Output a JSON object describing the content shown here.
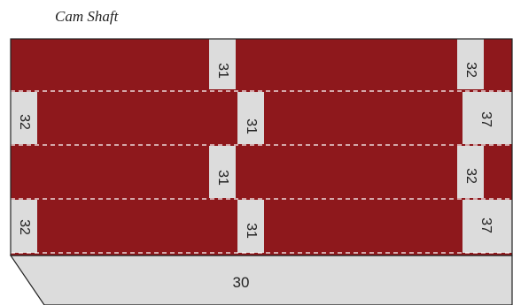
{
  "title": "Cam Shaft",
  "colors": {
    "band": "#8e181c",
    "segment": "#dcdcdc",
    "base": "#dcdcdc",
    "outline": "#222222",
    "divider": "#ffffff"
  },
  "rows": [
    {
      "segments": [
        "31",
        "32"
      ]
    },
    {
      "segments": [
        "32",
        "31",
        "37"
      ]
    },
    {
      "segments": [
        "31",
        "32"
      ]
    },
    {
      "segments": [
        "32",
        "31",
        "37"
      ]
    }
  ],
  "base": {
    "label": "30"
  }
}
